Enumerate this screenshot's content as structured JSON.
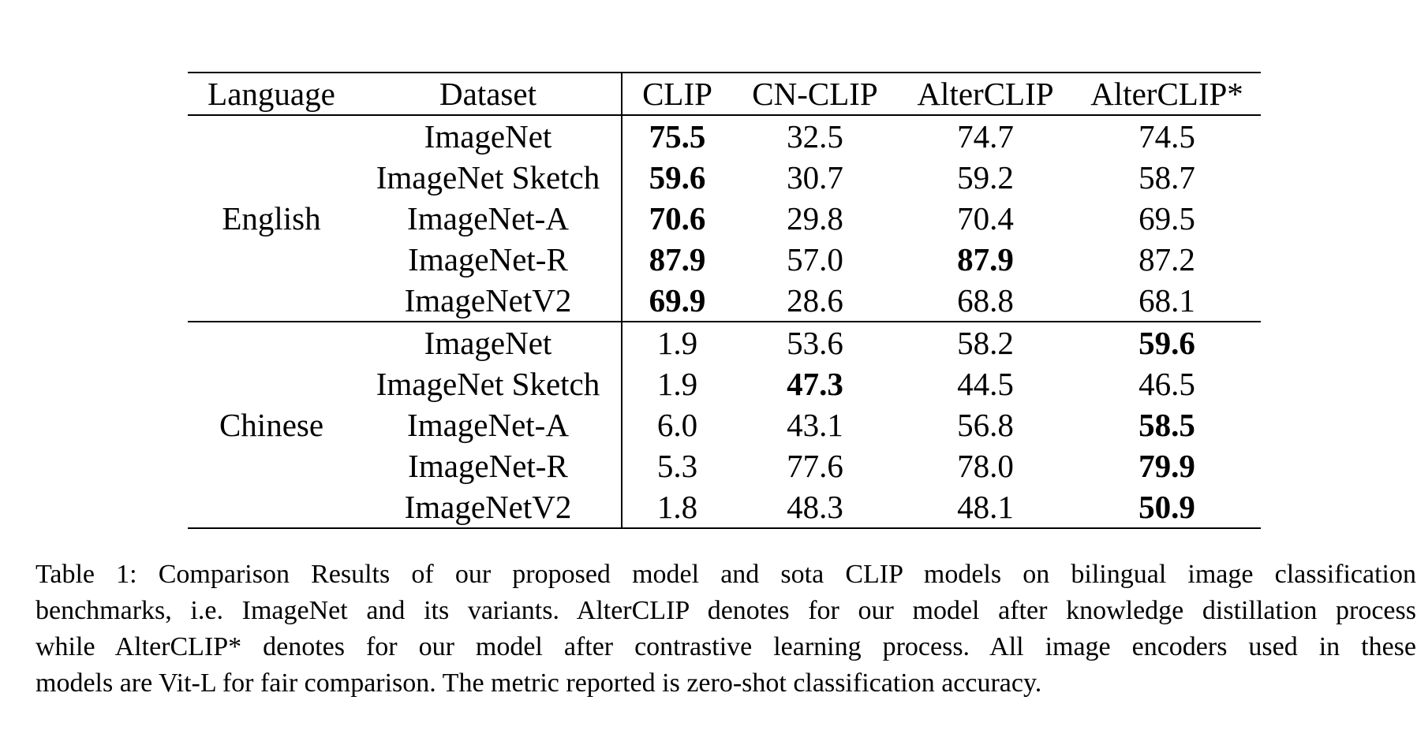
{
  "table": {
    "headers": [
      "Language",
      "Dataset",
      "CLIP",
      "CN-CLIP",
      "AlterCLIP",
      "AlterCLIP*"
    ],
    "groups": [
      {
        "language": "English",
        "rows": [
          {
            "dataset": "ImageNet",
            "values": [
              "75.5",
              "32.5",
              "74.7",
              "74.5"
            ],
            "bold": [
              0
            ]
          },
          {
            "dataset": "ImageNet Sketch",
            "values": [
              "59.6",
              "30.7",
              "59.2",
              "58.7"
            ],
            "bold": [
              0
            ]
          },
          {
            "dataset": "ImageNet-A",
            "values": [
              "70.6",
              "29.8",
              "70.4",
              "69.5"
            ],
            "bold": [
              0
            ]
          },
          {
            "dataset": "ImageNet-R",
            "values": [
              "87.9",
              "57.0",
              "87.9",
              "87.2"
            ],
            "bold": [
              0,
              2
            ]
          },
          {
            "dataset": "ImageNetV2",
            "values": [
              "69.9",
              "28.6",
              "68.8",
              "68.1"
            ],
            "bold": [
              0
            ]
          }
        ]
      },
      {
        "language": "Chinese",
        "rows": [
          {
            "dataset": "ImageNet",
            "values": [
              "1.9",
              "53.6",
              "58.2",
              "59.6"
            ],
            "bold": [
              3
            ]
          },
          {
            "dataset": "ImageNet Sketch",
            "values": [
              "1.9",
              "47.3",
              "44.5",
              "46.5"
            ],
            "bold": [
              1
            ]
          },
          {
            "dataset": "ImageNet-A",
            "values": [
              "6.0",
              "43.1",
              "56.8",
              "58.5"
            ],
            "bold": [
              3
            ]
          },
          {
            "dataset": "ImageNet-R",
            "values": [
              "5.3",
              "77.6",
              "78.0",
              "79.9"
            ],
            "bold": [
              3
            ]
          },
          {
            "dataset": "ImageNetV2",
            "values": [
              "1.8",
              "48.3",
              "48.1",
              "50.9"
            ],
            "bold": [
              3
            ]
          }
        ]
      }
    ]
  },
  "caption": {
    "lines": [
      "Table 1:  Comparison Results of our proposed model and sota CLIP models on bilingual image classification",
      "benchmarks, i.e. ImageNet and its variants. AlterCLIP denotes for our model after knowledge distillation process",
      "while AlterCLIP* denotes for our model after contrastive learning process.  All image encoders used in these",
      "models are Vit-L for fair comparison. The metric reported is zero-shot classification accuracy."
    ]
  }
}
